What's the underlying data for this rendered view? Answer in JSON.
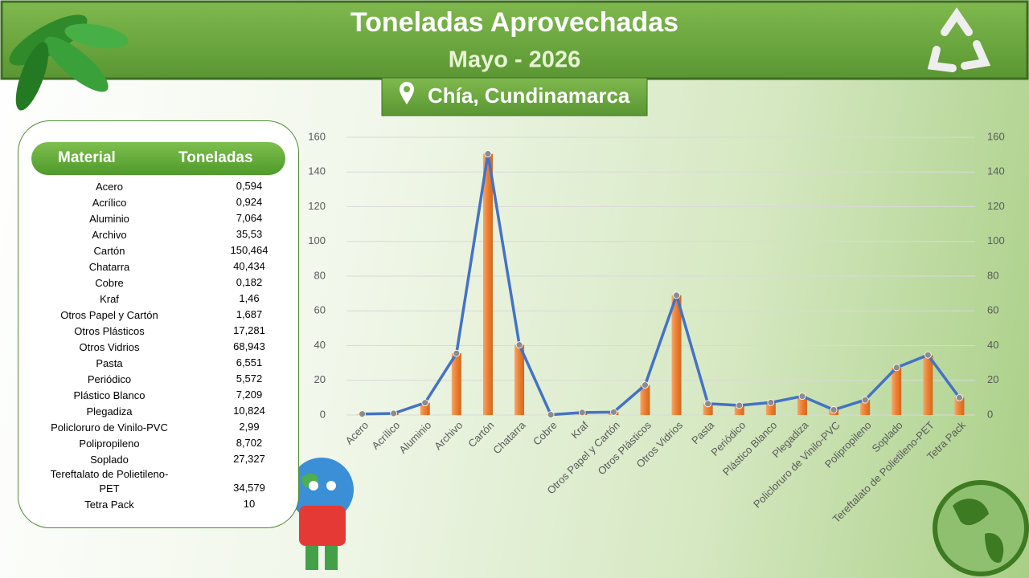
{
  "header": {
    "title": "Toneladas Aprovechadas",
    "subtitle": "Mayo - 2026",
    "location": "Chía, Cundinamarca"
  },
  "table": {
    "columns": [
      "Material",
      "Toneladas"
    ]
  },
  "chart_data": {
    "type": "combo",
    "categories": [
      "Acero",
      "Acrílico",
      "Aluminio",
      "Archivo",
      "Cartón",
      "Chatarra",
      "Cobre",
      "Kraf",
      "Otros Papel y Cartón",
      "Otros Plásticos",
      "Otros Vidrios",
      "Pasta",
      "Periódico",
      "Plástico Blanco",
      "Plegadiza",
      "Policloruro de Vinilo-PVC",
      "Polipropileno",
      "Soplado",
      "Tereftalato de Polietileno-PET",
      "Tetra Pack"
    ],
    "series": [
      {
        "type": "bar",
        "color": "#ed7d31",
        "values": [
          0.594,
          0.924,
          7.064,
          35.53,
          150.464,
          40.434,
          0.182,
          1.46,
          1.687,
          17.281,
          68.943,
          6.551,
          5.572,
          7.209,
          10.824,
          2.99,
          8.702,
          27.327,
          34.579,
          10
        ],
        "value_labels": [
          "0,594",
          "0,924",
          "7,064",
          "35,53",
          "150,464",
          "40,434",
          "0,182",
          "1,46",
          "1,687",
          "17,281",
          "68,943",
          "6,551",
          "5,572",
          "7,209",
          "10,824",
          "2,99",
          "8,702",
          "27,327",
          "34,579",
          "10"
        ]
      },
      {
        "type": "line",
        "axis": "y2",
        "color": "#4472c4",
        "marker_color": "#8c8c8c",
        "values": [
          0.594,
          0.924,
          7.064,
          35.53,
          150.464,
          40.434,
          0.182,
          1.46,
          1.687,
          17.281,
          68.943,
          6.551,
          5.572,
          7.209,
          10.824,
          2.99,
          8.702,
          27.327,
          34.579,
          10
        ]
      }
    ],
    "ylim": [
      0,
      160
    ],
    "yticks": [
      0,
      20,
      40,
      60,
      80,
      100,
      120,
      140,
      160
    ],
    "y2lim": [
      0,
      160
    ],
    "y2ticks": [
      0,
      20,
      40,
      60,
      80,
      100,
      120,
      140,
      160
    ],
    "grid": true
  }
}
